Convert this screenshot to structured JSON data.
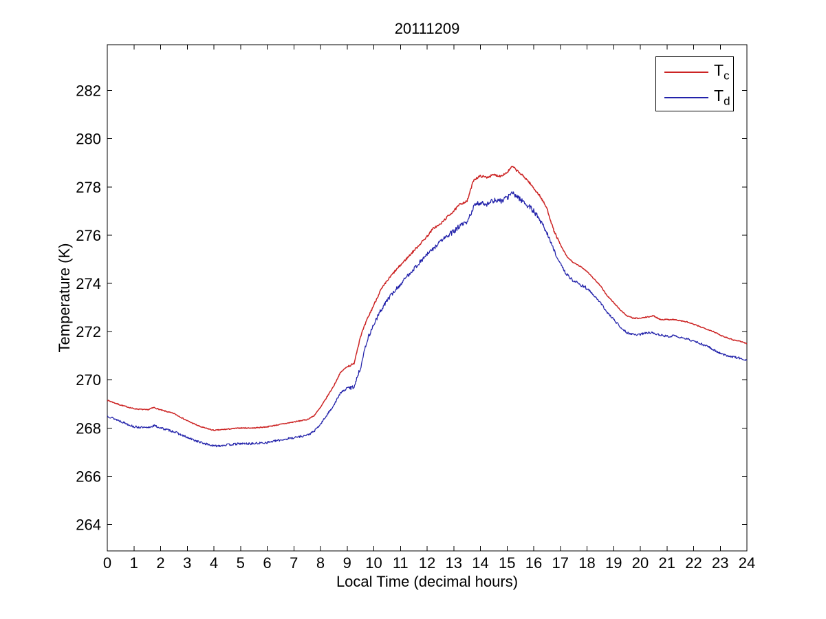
{
  "figure": {
    "background": "#ffffff"
  },
  "chart_data": {
    "type": "line",
    "title": "20111209",
    "xlabel": "Local Time (decimal hours)",
    "ylabel": "Temperature (K)",
    "xlim": [
      0,
      24
    ],
    "ylim": [
      262.9,
      283.9
    ],
    "xticks": [
      0,
      1,
      2,
      3,
      4,
      5,
      6,
      7,
      8,
      9,
      10,
      11,
      12,
      13,
      14,
      15,
      16,
      17,
      18,
      19,
      20,
      21,
      22,
      23,
      24
    ],
    "yticks": [
      264,
      266,
      268,
      270,
      272,
      274,
      276,
      278,
      280,
      282
    ],
    "grid": false,
    "legend_position": "top-right",
    "axis_color": "#000000",
    "series": [
      {
        "name": "T_c",
        "label_base": "T",
        "label_sub": "c",
        "color": "#cc2424",
        "seed": 7,
        "noise": {
          "base": 0.02,
          "segments": [
            [
              9,
              17,
              0.045
            ]
          ]
        },
        "x": [
          0,
          0.5,
          1,
          1.5,
          1.75,
          2,
          2.5,
          3,
          3.5,
          4,
          4.5,
          5,
          5.5,
          6,
          6.5,
          7,
          7.5,
          7.75,
          8,
          8.25,
          8.5,
          8.75,
          9,
          9.25,
          9.5,
          9.75,
          10,
          10.25,
          10.5,
          10.75,
          11,
          11.25,
          11.5,
          11.75,
          12,
          12.25,
          12.5,
          12.75,
          13,
          13.25,
          13.5,
          13.75,
          14,
          14.25,
          14.5,
          14.75,
          15,
          15.2,
          15.5,
          15.75,
          16,
          16.25,
          16.5,
          16.75,
          17,
          17.25,
          17.5,
          17.75,
          18,
          18.25,
          18.5,
          18.75,
          19,
          19.25,
          19.5,
          19.75,
          20,
          20.25,
          20.5,
          20.75,
          21,
          21.25,
          21.5,
          21.75,
          22,
          22.25,
          22.5,
          22.75,
          23,
          23.25,
          23.5,
          23.75,
          24
        ],
        "values": [
          269.15,
          268.95,
          268.8,
          268.75,
          268.85,
          268.75,
          268.6,
          268.3,
          268.05,
          267.9,
          267.95,
          268.0,
          268.0,
          268.05,
          268.15,
          268.25,
          268.35,
          268.5,
          268.85,
          269.3,
          269.75,
          270.3,
          270.55,
          270.65,
          271.8,
          272.5,
          273.1,
          273.7,
          274.1,
          274.45,
          274.75,
          275.05,
          275.35,
          275.65,
          275.95,
          276.3,
          276.45,
          276.75,
          277.0,
          277.3,
          277.4,
          278.3,
          278.45,
          278.4,
          278.5,
          278.45,
          278.6,
          278.85,
          278.55,
          278.3,
          277.95,
          277.6,
          277.1,
          276.2,
          275.6,
          275.1,
          274.85,
          274.7,
          274.5,
          274.2,
          273.9,
          273.5,
          273.2,
          272.9,
          272.65,
          272.55,
          272.55,
          272.6,
          272.65,
          272.5,
          272.5,
          272.5,
          272.45,
          272.4,
          272.3,
          272.2,
          272.1,
          272.0,
          271.85,
          271.75,
          271.65,
          271.6,
          271.5
        ]
      },
      {
        "name": "T_d",
        "label_base": "T",
        "label_sub": "d",
        "color": "#2222aa",
        "seed": 13,
        "noise": {
          "base": 0.045,
          "segments": [
            [
              9,
              12.5,
              0.085
            ],
            [
              12.5,
              16.5,
              0.11
            ],
            [
              16.5,
              18,
              0.07
            ]
          ]
        },
        "x": [
          0,
          0.5,
          1,
          1.5,
          1.75,
          2,
          2.5,
          3,
          3.5,
          4,
          4.5,
          5,
          5.5,
          6,
          6.5,
          7,
          7.5,
          7.75,
          8,
          8.25,
          8.5,
          8.75,
          9,
          9.25,
          9.5,
          9.75,
          10,
          10.25,
          10.5,
          10.75,
          11,
          11.25,
          11.5,
          11.75,
          12,
          12.25,
          12.5,
          12.75,
          13,
          13.25,
          13.5,
          13.75,
          14,
          14.25,
          14.5,
          14.75,
          15,
          15.2,
          15.5,
          15.75,
          16,
          16.25,
          16.5,
          16.75,
          17,
          17.25,
          17.5,
          17.75,
          18,
          18.25,
          18.5,
          18.75,
          19,
          19.25,
          19.5,
          19.75,
          20,
          20.25,
          20.5,
          20.75,
          21,
          21.25,
          21.5,
          21.75,
          22,
          22.25,
          22.5,
          22.75,
          23,
          23.25,
          23.5,
          23.75,
          24
        ],
        "values": [
          268.5,
          268.28,
          268.05,
          268.0,
          268.1,
          268.0,
          267.85,
          267.6,
          267.4,
          267.25,
          267.3,
          267.35,
          267.35,
          267.4,
          267.5,
          267.6,
          267.7,
          267.85,
          268.15,
          268.55,
          268.95,
          269.45,
          269.65,
          269.7,
          270.5,
          271.65,
          272.3,
          272.85,
          273.3,
          273.65,
          273.95,
          274.3,
          274.6,
          274.9,
          275.2,
          275.45,
          275.75,
          275.95,
          276.15,
          276.4,
          276.5,
          277.2,
          277.35,
          277.3,
          277.45,
          277.4,
          277.55,
          277.75,
          277.5,
          277.25,
          277.0,
          276.6,
          276.1,
          275.4,
          274.8,
          274.35,
          274.1,
          273.95,
          273.8,
          273.5,
          273.2,
          272.8,
          272.5,
          272.2,
          271.95,
          271.88,
          271.88,
          271.95,
          271.95,
          271.85,
          271.8,
          271.82,
          271.75,
          271.7,
          271.6,
          271.5,
          271.4,
          271.25,
          271.1,
          271.0,
          270.95,
          270.9,
          270.8
        ]
      }
    ]
  }
}
